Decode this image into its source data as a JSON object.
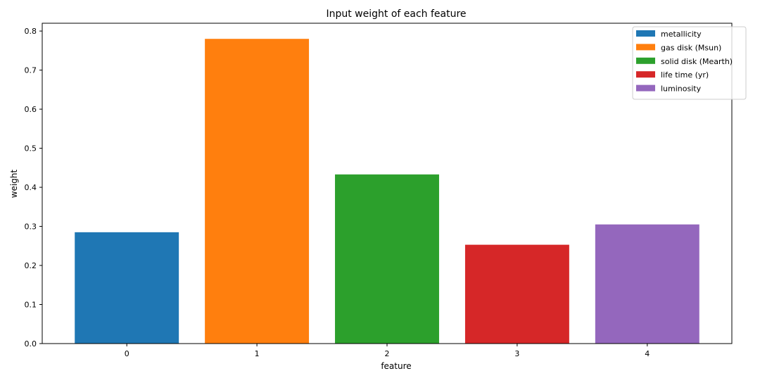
{
  "chart_data": {
    "type": "bar",
    "title": "Input weight of each feature",
    "xlabel": "feature",
    "ylabel": "weight",
    "categories": [
      "0",
      "1",
      "2",
      "3",
      "4"
    ],
    "ylim": [
      0,
      0.82
    ],
    "yticks": [
      "0.0",
      "0.1",
      "0.2",
      "0.3",
      "0.4",
      "0.5",
      "0.6",
      "0.7",
      "0.8"
    ],
    "series": [
      {
        "name": "metallicity",
        "category": "0",
        "value": 0.285,
        "color": "#1f77b4"
      },
      {
        "name": "gas disk (Msun)",
        "category": "1",
        "value": 0.78,
        "color": "#ff7f0e"
      },
      {
        "name": "solid disk (Mearth)",
        "category": "2",
        "value": 0.433,
        "color": "#2ca02c"
      },
      {
        "name": "life time (yr)",
        "category": "3",
        "value": 0.253,
        "color": "#d62728"
      },
      {
        "name": "luminosity",
        "category": "4",
        "value": 0.305,
        "color": "#9467bd"
      }
    ],
    "grid": false,
    "legend_position": "top-right"
  }
}
